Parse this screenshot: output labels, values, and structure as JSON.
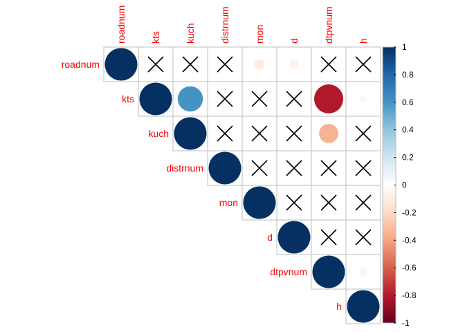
{
  "chart_data": {
    "type": "heatmap",
    "variables": [
      "roadnum",
      "kts",
      "kuch",
      "distrnum",
      "mon",
      "d",
      "dtpvnum",
      "h"
    ],
    "layout": "upper-triangle",
    "marker": "circle",
    "insignificant_marker": "cross",
    "value_range": [
      -1,
      1
    ],
    "colorbar_ticks": [
      "1",
      "0.8",
      "0.6",
      "0.4",
      "0.2",
      "0",
      "-0.2",
      "-0.4",
      "-0.6",
      "-0.8",
      "-1"
    ],
    "colorbar_tick_values": [
      1,
      0.8,
      0.6,
      0.4,
      0.2,
      0,
      -0.2,
      -0.4,
      -0.6,
      -0.8,
      -1
    ],
    "colors": {
      "negative": "#67001f",
      "zero": "#ffffff",
      "positive": "#053061",
      "label": "#ff0000",
      "grid": "#bebebe"
    },
    "cells": [
      {
        "row": "roadnum",
        "col": "roadnum",
        "value": 1.0,
        "significant": true
      },
      {
        "row": "roadnum",
        "col": "kts",
        "value": 0.0,
        "significant": false
      },
      {
        "row": "roadnum",
        "col": "kuch",
        "value": 0.0,
        "significant": false
      },
      {
        "row": "roadnum",
        "col": "distrnum",
        "value": 0.0,
        "significant": false
      },
      {
        "row": "roadnum",
        "col": "mon",
        "value": -0.1,
        "significant": true
      },
      {
        "row": "roadnum",
        "col": "d",
        "value": -0.08,
        "significant": true
      },
      {
        "row": "roadnum",
        "col": "dtpvnum",
        "value": 0.0,
        "significant": false
      },
      {
        "row": "roadnum",
        "col": "h",
        "value": 0.0,
        "significant": false
      },
      {
        "row": "kts",
        "col": "kts",
        "value": 1.0,
        "significant": true
      },
      {
        "row": "kts",
        "col": "kuch",
        "value": 0.6,
        "significant": true
      },
      {
        "row": "kts",
        "col": "distrnum",
        "value": 0.0,
        "significant": false
      },
      {
        "row": "kts",
        "col": "mon",
        "value": 0.0,
        "significant": false
      },
      {
        "row": "kts",
        "col": "d",
        "value": 0.0,
        "significant": false
      },
      {
        "row": "kts",
        "col": "dtpvnum",
        "value": -0.8,
        "significant": true
      },
      {
        "row": "kts",
        "col": "h",
        "value": -0.05,
        "significant": true
      },
      {
        "row": "kuch",
        "col": "kuch",
        "value": 1.0,
        "significant": true
      },
      {
        "row": "kuch",
        "col": "distrnum",
        "value": 0.0,
        "significant": false
      },
      {
        "row": "kuch",
        "col": "mon",
        "value": 0.0,
        "significant": false
      },
      {
        "row": "kuch",
        "col": "d",
        "value": 0.0,
        "significant": false
      },
      {
        "row": "kuch",
        "col": "dtpvnum",
        "value": -0.35,
        "significant": true
      },
      {
        "row": "kuch",
        "col": "h",
        "value": 0.0,
        "significant": false
      },
      {
        "row": "distrnum",
        "col": "distrnum",
        "value": 1.0,
        "significant": true
      },
      {
        "row": "distrnum",
        "col": "mon",
        "value": 0.0,
        "significant": false
      },
      {
        "row": "distrnum",
        "col": "d",
        "value": 0.0,
        "significant": false
      },
      {
        "row": "distrnum",
        "col": "dtpvnum",
        "value": 0.0,
        "significant": false
      },
      {
        "row": "distrnum",
        "col": "h",
        "value": 0.0,
        "significant": false
      },
      {
        "row": "mon",
        "col": "mon",
        "value": 1.0,
        "significant": true
      },
      {
        "row": "mon",
        "col": "d",
        "value": 0.0,
        "significant": false
      },
      {
        "row": "mon",
        "col": "dtpvnum",
        "value": 0.0,
        "significant": false
      },
      {
        "row": "mon",
        "col": "h",
        "value": 0.0,
        "significant": false
      },
      {
        "row": "d",
        "col": "d",
        "value": 1.0,
        "significant": true
      },
      {
        "row": "d",
        "col": "dtpvnum",
        "value": 0.0,
        "significant": false
      },
      {
        "row": "d",
        "col": "h",
        "value": 0.0,
        "significant": false
      },
      {
        "row": "dtpvnum",
        "col": "dtpvnum",
        "value": 1.0,
        "significant": true
      },
      {
        "row": "dtpvnum",
        "col": "h",
        "value": 0.06,
        "significant": true
      },
      {
        "row": "h",
        "col": "h",
        "value": 1.0,
        "significant": true
      }
    ]
  }
}
